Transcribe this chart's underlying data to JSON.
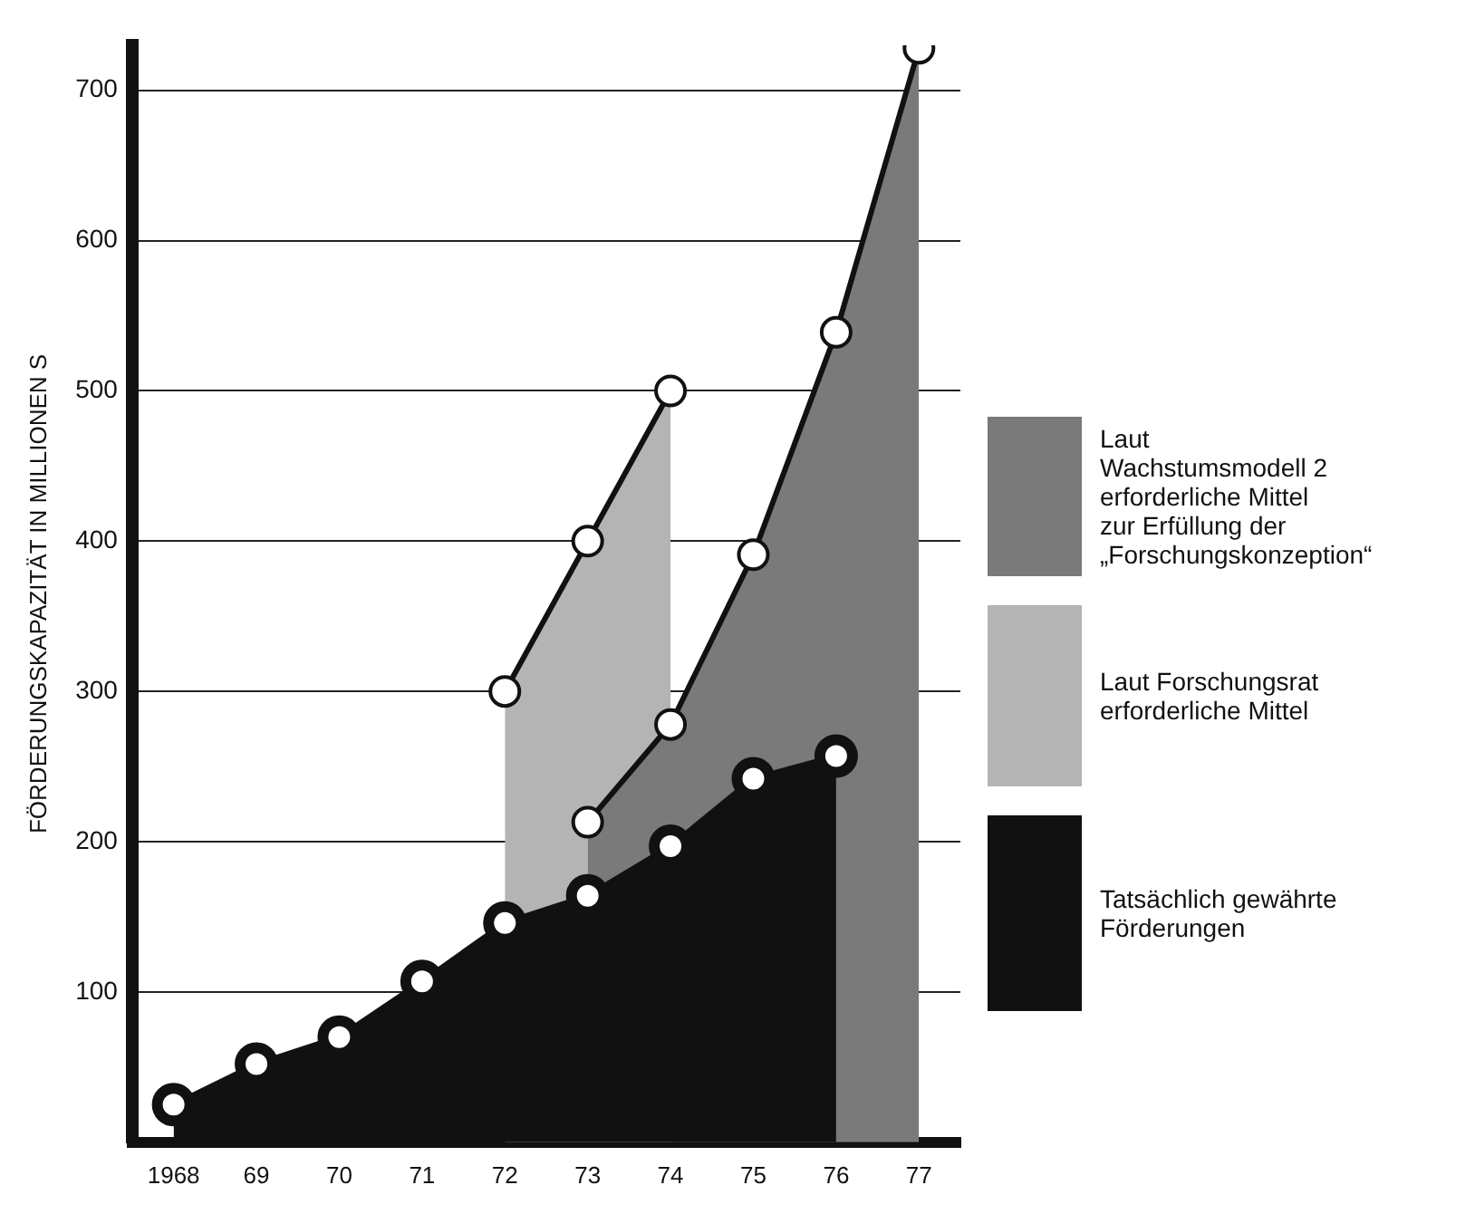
{
  "chart_data": {
    "type": "area",
    "ylabel": "FÖRDERUNGSKAPAZITÄT IN MILLIONEN S",
    "categories": [
      "1968",
      "69",
      "70",
      "71",
      "72",
      "73",
      "74",
      "75",
      "76",
      "77"
    ],
    "series": [
      {
        "name": "Laut\nWachstumsmodell 2\nerforderliche Mittel\nzur Erfüllung der\n„Forschungskonzeption“",
        "color": "#7a7a7a",
        "values": [
          null,
          null,
          null,
          null,
          null,
          213,
          278,
          391,
          539,
          728
        ]
      },
      {
        "name": "Laut Forschungsrat\nerforderliche Mittel",
        "color": "#b4b4b4",
        "values": [
          null,
          null,
          null,
          null,
          300,
          400,
          500,
          null,
          null,
          null
        ]
      },
      {
        "name": "Tatsächlich gewährte\nFörderungen",
        "color": "#111111",
        "values": [
          25,
          52,
          70,
          107,
          146,
          164,
          197,
          242,
          257,
          null
        ]
      }
    ],
    "ylim": [
      0,
      730
    ],
    "yticks": [
      100,
      200,
      300,
      400,
      500,
      600,
      700
    ],
    "grid": "y",
    "legend": "right",
    "marker": "circle"
  }
}
